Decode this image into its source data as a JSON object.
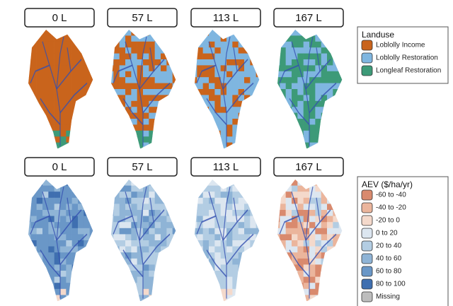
{
  "rows": [
    {
      "panels": [
        "0 L",
        "57 L",
        "113 L",
        "167 L"
      ],
      "legend": {
        "title": "Landuse",
        "items": [
          {
            "label": "Loblolly Income",
            "color": "#c9641c"
          },
          {
            "label": "Loblolly Restoration",
            "color": "#7fb6e0"
          },
          {
            "label": "Longleaf Restoration",
            "color": "#3d9a78"
          }
        ]
      }
    },
    {
      "panels": [
        "0 L",
        "57 L",
        "113 L",
        "167 L"
      ],
      "legend": {
        "title": "AEV ($/ha/yr)",
        "items": [
          {
            "label": "-60 to -40",
            "color": "#d98a6e"
          },
          {
            "label": "-40 to -20",
            "color": "#ebb59c"
          },
          {
            "label": "-20 to 0",
            "color": "#f4d9cb"
          },
          {
            "label": "0 to 20",
            "color": "#dce6f0"
          },
          {
            "label": "20 to 40",
            "color": "#b3cde3"
          },
          {
            "label": "40 to 60",
            "color": "#8fb4d6"
          },
          {
            "label": "60 to 80",
            "color": "#6a97c7"
          },
          {
            "label": "80 to 100",
            "color": "#3f6fb0"
          },
          {
            "label": "Missing",
            "color": "#bdbdbd"
          }
        ]
      }
    }
  ]
}
